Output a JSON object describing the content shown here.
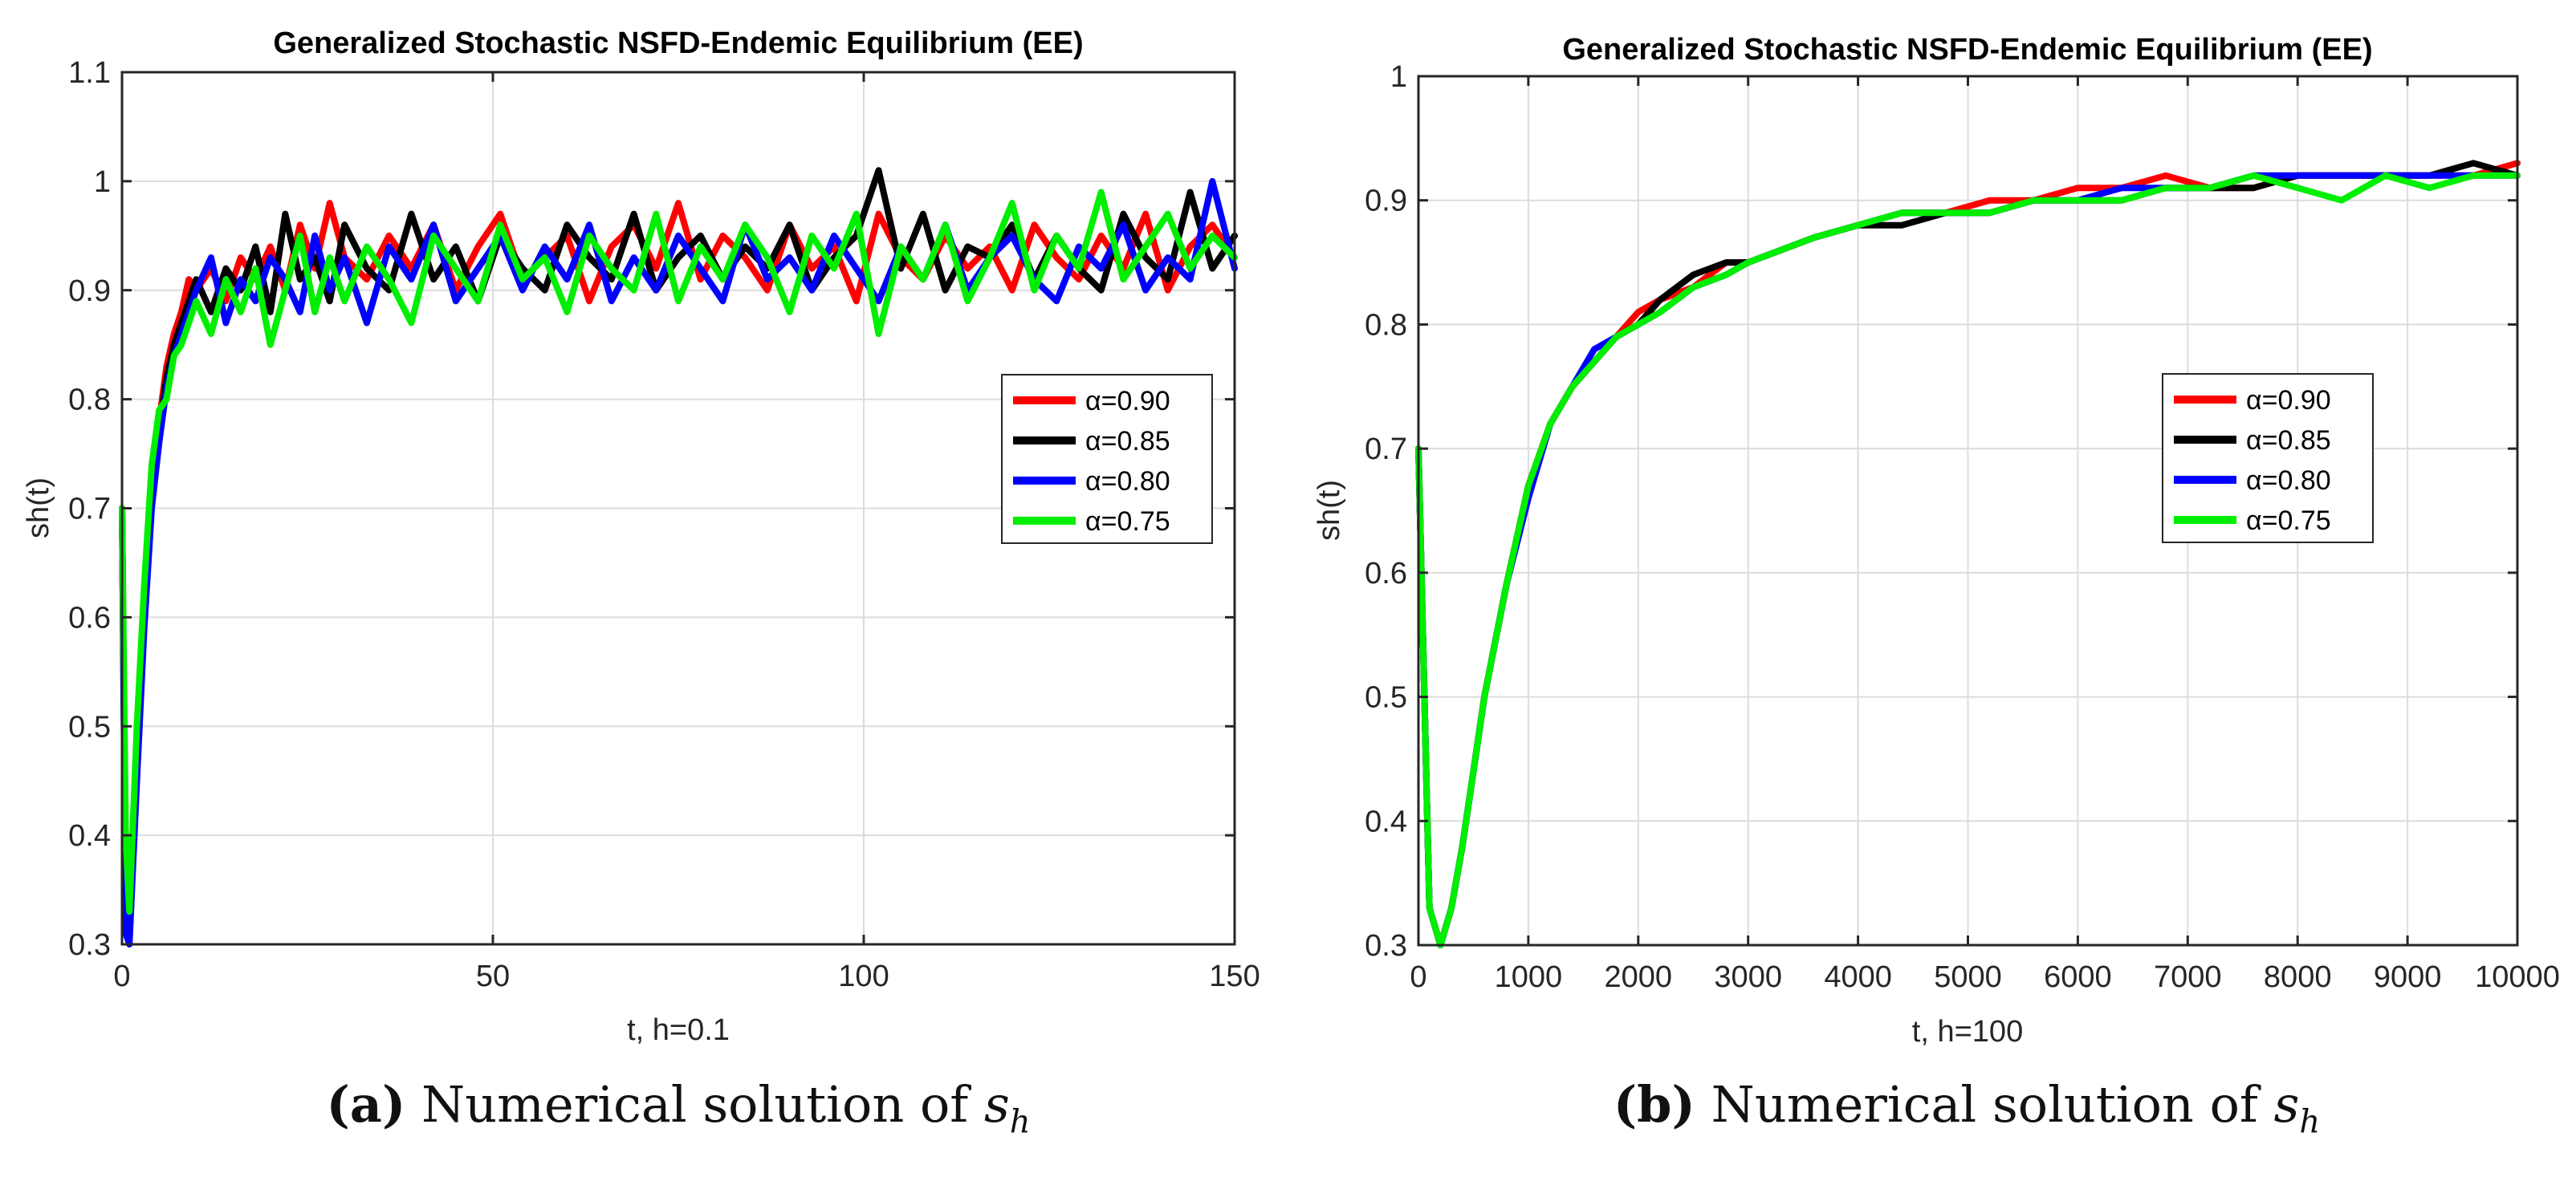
{
  "charts": [
    {
      "type": "line",
      "title": "Generalized Stochastic NSFD-Endemic Equilibrium (EE)",
      "xlabel": "t, h=0.1",
      "ylabel": "sh(t)",
      "xlim": [
        0,
        150
      ],
      "ylim": [
        0.3,
        1.1
      ],
      "xticks": [
        "0",
        "50",
        "100",
        "150"
      ],
      "yticks": [
        "0.3",
        "0.4",
        "0.5",
        "0.6",
        "0.7",
        "0.8",
        "0.9",
        "1",
        "1.1"
      ],
      "grid": true,
      "legend_position": "right-middle",
      "caption_label": "(a)",
      "caption_text": "Numerical solution of",
      "caption_symbol": "s",
      "caption_sub": "h"
    },
    {
      "type": "line",
      "title": "Generalized Stochastic NSFD-Endemic Equilibrium (EE)",
      "xlabel": "t, h=100",
      "ylabel": "sh(t)",
      "xlim": [
        0,
        10000
      ],
      "ylim": [
        0.3,
        1.0
      ],
      "xticks": [
        "0",
        "1000",
        "2000",
        "3000",
        "4000",
        "5000",
        "6000",
        "7000",
        "8000",
        "9000",
        "10000"
      ],
      "yticks": [
        "0.3",
        "0.4",
        "0.5",
        "0.6",
        "0.7",
        "0.8",
        "0.9",
        "1"
      ],
      "grid": true,
      "legend_position": "center-right",
      "caption_label": "(b)",
      "caption_text": "Numerical solution of",
      "caption_symbol": "s",
      "caption_sub": "h"
    }
  ],
  "chart_data": [
    {
      "type": "line",
      "title": "Generalized Stochastic NSFD-Endemic Equilibrium (EE)",
      "xlabel": "t, h=0.1",
      "ylabel": "sh(t)",
      "xlim": [
        0,
        150
      ],
      "ylim": [
        0.3,
        1.1
      ],
      "series": [
        {
          "name": "α=0.90",
          "color": "#ff0000",
          "x": [
            0,
            0.5,
            1,
            2,
            3,
            4,
            5,
            6,
            7,
            8,
            9,
            10,
            12,
            14,
            16,
            18,
            20,
            22,
            24,
            26,
            28,
            30,
            33,
            36,
            39,
            42,
            45,
            48,
            51,
            54,
            57,
            60,
            63,
            66,
            69,
            72,
            75,
            78,
            81,
            84,
            87,
            90,
            93,
            96,
            99,
            102,
            105,
            108,
            111,
            114,
            117,
            120,
            123,
            126,
            129,
            132,
            135,
            138,
            141,
            144,
            147,
            150
          ],
          "y": [
            0.7,
            0.35,
            0.32,
            0.48,
            0.62,
            0.73,
            0.78,
            0.83,
            0.86,
            0.88,
            0.91,
            0.9,
            0.92,
            0.89,
            0.93,
            0.91,
            0.94,
            0.9,
            0.96,
            0.92,
            0.98,
            0.93,
            0.91,
            0.95,
            0.92,
            0.96,
            0.9,
            0.94,
            0.97,
            0.91,
            0.93,
            0.95,
            0.89,
            0.94,
            0.96,
            0.92,
            0.98,
            0.91,
            0.95,
            0.93,
            0.9,
            0.96,
            0.92,
            0.94,
            0.89,
            0.97,
            0.93,
            0.91,
            0.95,
            0.92,
            0.94,
            0.9,
            0.96,
            0.93,
            0.91,
            0.95,
            0.92,
            0.97,
            0.9,
            0.94,
            0.96,
            0.93
          ]
        },
        {
          "name": "α=0.85",
          "color": "#000000",
          "x": [
            0,
            0.5,
            1,
            2,
            3,
            4,
            5,
            6,
            7,
            8,
            9,
            10,
            12,
            14,
            16,
            18,
            20,
            22,
            24,
            26,
            28,
            30,
            33,
            36,
            39,
            42,
            45,
            48,
            51,
            54,
            57,
            60,
            63,
            66,
            69,
            72,
            75,
            78,
            81,
            84,
            87,
            90,
            93,
            96,
            99,
            102,
            105,
            108,
            111,
            114,
            117,
            120,
            123,
            126,
            129,
            132,
            135,
            138,
            141,
            144,
            147,
            150
          ],
          "y": [
            0.7,
            0.33,
            0.31,
            0.46,
            0.6,
            0.71,
            0.77,
            0.82,
            0.85,
            0.87,
            0.89,
            0.91,
            0.88,
            0.92,
            0.9,
            0.94,
            0.88,
            0.97,
            0.91,
            0.93,
            0.89,
            0.96,
            0.92,
            0.9,
            0.97,
            0.91,
            0.94,
            0.89,
            0.95,
            0.92,
            0.9,
            0.96,
            0.93,
            0.91,
            0.97,
            0.9,
            0.93,
            0.95,
            0.91,
            0.94,
            0.92,
            0.96,
            0.9,
            0.93,
            0.95,
            1.01,
            0.92,
            0.97,
            0.9,
            0.94,
            0.93,
            0.96,
            0.91,
            0.95,
            0.92,
            0.9,
            0.97,
            0.93,
            0.91,
            0.99,
            0.92,
            0.95
          ]
        },
        {
          "name": "α=0.80",
          "color": "#0000ff",
          "x": [
            0,
            0.5,
            1,
            2,
            3,
            4,
            5,
            6,
            7,
            8,
            9,
            10,
            12,
            14,
            16,
            18,
            20,
            22,
            24,
            26,
            28,
            30,
            33,
            36,
            39,
            42,
            45,
            48,
            51,
            54,
            57,
            60,
            63,
            66,
            69,
            72,
            75,
            78,
            81,
            84,
            87,
            90,
            93,
            96,
            99,
            102,
            105,
            108,
            111,
            114,
            117,
            120,
            123,
            126,
            129,
            132,
            135,
            138,
            141,
            144,
            147,
            150
          ],
          "y": [
            0.7,
            0.31,
            0.3,
            0.45,
            0.59,
            0.7,
            0.76,
            0.81,
            0.84,
            0.86,
            0.88,
            0.9,
            0.93,
            0.87,
            0.91,
            0.89,
            0.93,
            0.91,
            0.88,
            0.95,
            0.9,
            0.93,
            0.87,
            0.94,
            0.91,
            0.96,
            0.89,
            0.92,
            0.95,
            0.9,
            0.94,
            0.91,
            0.96,
            0.89,
            0.93,
            0.9,
            0.95,
            0.92,
            0.89,
            0.96,
            0.91,
            0.93,
            0.9,
            0.95,
            0.92,
            0.89,
            0.94,
            0.91,
            0.96,
            0.9,
            0.93,
            0.95,
            0.91,
            0.89,
            0.94,
            0.92,
            0.96,
            0.9,
            0.93,
            0.91,
            1.0,
            0.92
          ]
        },
        {
          "name": "α=0.75",
          "color": "#00ee00",
          "x": [
            0,
            0.5,
            1,
            2,
            3,
            4,
            5,
            6,
            7,
            8,
            9,
            10,
            12,
            14,
            16,
            18,
            20,
            22,
            24,
            26,
            28,
            30,
            33,
            36,
            39,
            42,
            45,
            48,
            51,
            54,
            57,
            60,
            63,
            66,
            69,
            72,
            75,
            78,
            81,
            84,
            87,
            90,
            93,
            96,
            99,
            102,
            105,
            108,
            111,
            114,
            117,
            120,
            123,
            126,
            129,
            132,
            135,
            138,
            141,
            144,
            147,
            150
          ],
          "y": [
            0.7,
            0.4,
            0.33,
            0.5,
            0.63,
            0.74,
            0.79,
            0.8,
            0.84,
            0.85,
            0.87,
            0.89,
            0.86,
            0.91,
            0.88,
            0.92,
            0.85,
            0.9,
            0.95,
            0.88,
            0.93,
            0.89,
            0.94,
            0.91,
            0.87,
            0.95,
            0.92,
            0.89,
            0.96,
            0.91,
            0.93,
            0.88,
            0.95,
            0.92,
            0.9,
            0.97,
            0.89,
            0.94,
            0.91,
            0.96,
            0.93,
            0.88,
            0.95,
            0.92,
            0.97,
            0.86,
            0.94,
            0.91,
            0.96,
            0.89,
            0.93,
            0.98,
            0.9,
            0.95,
            0.92,
            0.99,
            0.91,
            0.94,
            0.97,
            0.92,
            0.95,
            0.93
          ]
        }
      ]
    },
    {
      "type": "line",
      "title": "Generalized Stochastic NSFD-Endemic Equilibrium (EE)",
      "xlabel": "t, h=100",
      "ylabel": "sh(t)",
      "xlim": [
        0,
        10000
      ],
      "ylim": [
        0.3,
        1.0
      ],
      "series": [
        {
          "name": "α=0.90",
          "color": "#ff0000",
          "x": [
            0,
            100,
            200,
            300,
            400,
            500,
            600,
            800,
            1000,
            1200,
            1400,
            1600,
            1800,
            2000,
            2200,
            2500,
            2800,
            3000,
            3300,
            3600,
            4000,
            4400,
            4800,
            5200,
            5600,
            6000,
            6400,
            6800,
            7200,
            7600,
            8000,
            8400,
            8800,
            9200,
            9600,
            10000
          ],
          "y": [
            0.7,
            0.33,
            0.3,
            0.33,
            0.38,
            0.44,
            0.5,
            0.59,
            0.67,
            0.72,
            0.75,
            0.77,
            0.79,
            0.81,
            0.82,
            0.83,
            0.85,
            0.85,
            0.86,
            0.87,
            0.88,
            0.89,
            0.89,
            0.9,
            0.9,
            0.91,
            0.91,
            0.92,
            0.91,
            0.91,
            0.92,
            0.92,
            0.92,
            0.92,
            0.92,
            0.93
          ]
        },
        {
          "name": "α=0.85",
          "color": "#000000",
          "x": [
            0,
            100,
            200,
            300,
            400,
            500,
            600,
            800,
            1000,
            1200,
            1400,
            1600,
            1800,
            2000,
            2200,
            2500,
            2800,
            3000,
            3300,
            3600,
            4000,
            4400,
            4800,
            5200,
            5600,
            6000,
            6400,
            6800,
            7200,
            7600,
            8000,
            8400,
            8800,
            9200,
            9600,
            10000
          ],
          "y": [
            0.7,
            0.33,
            0.3,
            0.33,
            0.38,
            0.44,
            0.5,
            0.59,
            0.67,
            0.72,
            0.75,
            0.77,
            0.79,
            0.8,
            0.82,
            0.84,
            0.85,
            0.85,
            0.86,
            0.87,
            0.88,
            0.88,
            0.89,
            0.89,
            0.9,
            0.9,
            0.9,
            0.91,
            0.91,
            0.91,
            0.92,
            0.92,
            0.92,
            0.92,
            0.93,
            0.92
          ]
        },
        {
          "name": "α=0.80",
          "color": "#0000ff",
          "x": [
            0,
            100,
            200,
            300,
            400,
            500,
            600,
            800,
            1000,
            1200,
            1400,
            1600,
            1800,
            2000,
            2200,
            2500,
            2800,
            3000,
            3300,
            3600,
            4000,
            4400,
            4800,
            5200,
            5600,
            6000,
            6400,
            6800,
            7200,
            7600,
            8000,
            8400,
            8800,
            9200,
            9600,
            10000
          ],
          "y": [
            0.7,
            0.33,
            0.3,
            0.33,
            0.38,
            0.44,
            0.5,
            0.59,
            0.66,
            0.72,
            0.75,
            0.78,
            0.79,
            0.8,
            0.81,
            0.83,
            0.84,
            0.85,
            0.86,
            0.87,
            0.88,
            0.89,
            0.89,
            0.89,
            0.9,
            0.9,
            0.91,
            0.91,
            0.91,
            0.92,
            0.92,
            0.92,
            0.92,
            0.92,
            0.92,
            0.92
          ]
        },
        {
          "name": "α=0.75",
          "color": "#00ee00",
          "x": [
            0,
            100,
            200,
            300,
            400,
            500,
            600,
            800,
            1000,
            1200,
            1400,
            1600,
            1800,
            2000,
            2200,
            2500,
            2800,
            3000,
            3300,
            3600,
            4000,
            4400,
            4800,
            5200,
            5600,
            6000,
            6400,
            6800,
            7200,
            7600,
            8000,
            8400,
            8800,
            9200,
            9600,
            10000
          ],
          "y": [
            0.7,
            0.33,
            0.3,
            0.33,
            0.38,
            0.44,
            0.5,
            0.59,
            0.67,
            0.72,
            0.75,
            0.77,
            0.79,
            0.8,
            0.81,
            0.83,
            0.84,
            0.85,
            0.86,
            0.87,
            0.88,
            0.89,
            0.89,
            0.89,
            0.9,
            0.9,
            0.9,
            0.91,
            0.91,
            0.92,
            0.91,
            0.9,
            0.92,
            0.91,
            0.92,
            0.92
          ]
        }
      ]
    }
  ]
}
